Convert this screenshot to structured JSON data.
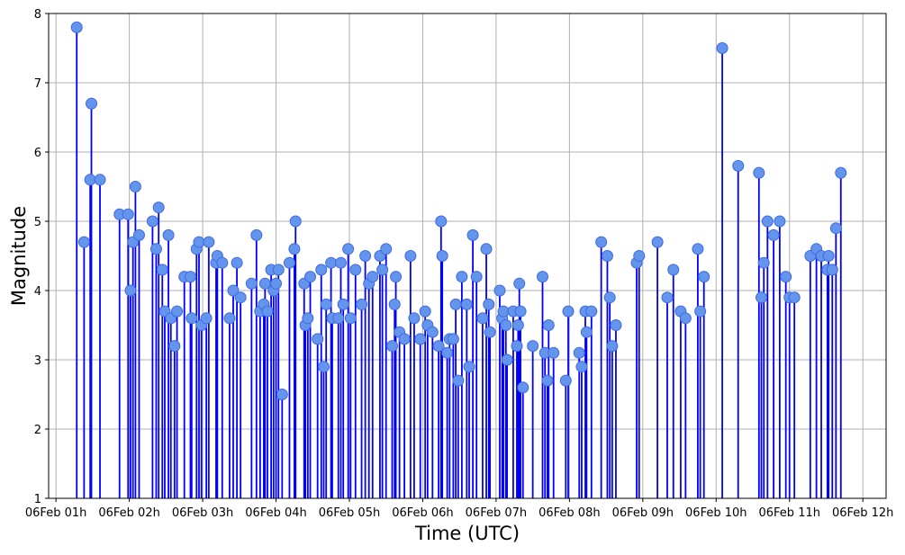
{
  "chart_data": {
    "type": "stem",
    "title": "",
    "xlabel": "Time (UTC)",
    "ylabel": "Magnitude",
    "ylim": [
      1,
      8
    ],
    "y_ticks": [
      1,
      2,
      3,
      4,
      5,
      6,
      7,
      8
    ],
    "xlim": [
      "06Feb 00:54",
      "06Feb 12:19"
    ],
    "x_ticks": [
      {
        "t": "06Feb 01:00",
        "label": "06Feb 01h"
      },
      {
        "t": "06Feb 02:00",
        "label": "06Feb 02h"
      },
      {
        "t": "06Feb 03:00",
        "label": "06Feb 03h"
      },
      {
        "t": "06Feb 04:00",
        "label": "06Feb 04h"
      },
      {
        "t": "06Feb 05:00",
        "label": "06Feb 05h"
      },
      {
        "t": "06Feb 06:00",
        "label": "06Feb 06h"
      },
      {
        "t": "06Feb 07:00",
        "label": "06Feb 07h"
      },
      {
        "t": "06Feb 08:00",
        "label": "06Feb 08h"
      },
      {
        "t": "06Feb 09:00",
        "label": "06Feb 09h"
      },
      {
        "t": "06Feb 10:00",
        "label": "06Feb 10h"
      },
      {
        "t": "06Feb 11:00",
        "label": "06Feb 11h"
      },
      {
        "t": "06Feb 12:00",
        "label": "06Feb 12h"
      }
    ],
    "grid": true,
    "colors": {
      "stem": "#0000ff",
      "marker_fill": "#6495ed",
      "marker_edge": "#4169e1",
      "grid": "#b0b0b0"
    },
    "points": [
      {
        "t": "06Feb 01:17",
        "m": 7.8
      },
      {
        "t": "06Feb 01:23",
        "m": 4.7
      },
      {
        "t": "06Feb 01:28",
        "m": 5.6
      },
      {
        "t": "06Feb 01:29",
        "m": 6.7
      },
      {
        "t": "06Feb 01:36",
        "m": 5.6
      },
      {
        "t": "06Feb 01:52",
        "m": 5.1
      },
      {
        "t": "06Feb 01:59",
        "m": 5.1
      },
      {
        "t": "06Feb 02:01",
        "m": 4.0
      },
      {
        "t": "06Feb 02:03",
        "m": 4.7
      },
      {
        "t": "06Feb 02:05",
        "m": 5.5
      },
      {
        "t": "06Feb 02:08",
        "m": 4.8
      },
      {
        "t": "06Feb 02:19",
        "m": 5.0
      },
      {
        "t": "06Feb 02:22",
        "m": 4.6
      },
      {
        "t": "06Feb 02:24",
        "m": 5.2
      },
      {
        "t": "06Feb 02:27",
        "m": 4.3
      },
      {
        "t": "06Feb 02:29",
        "m": 3.7
      },
      {
        "t": "06Feb 02:32",
        "m": 4.8
      },
      {
        "t": "06Feb 02:34",
        "m": 3.6
      },
      {
        "t": "06Feb 02:37",
        "m": 3.2
      },
      {
        "t": "06Feb 02:39",
        "m": 3.7
      },
      {
        "t": "06Feb 02:45",
        "m": 4.2
      },
      {
        "t": "06Feb 02:50",
        "m": 4.2
      },
      {
        "t": "06Feb 02:51",
        "m": 3.6
      },
      {
        "t": "06Feb 02:55",
        "m": 4.6
      },
      {
        "t": "06Feb 02:57",
        "m": 4.7
      },
      {
        "t": "06Feb 02:59",
        "m": 3.5
      },
      {
        "t": "06Feb 03:03",
        "m": 3.6
      },
      {
        "t": "06Feb 03:05",
        "m": 4.7
      },
      {
        "t": "06Feb 03:11",
        "m": 4.4
      },
      {
        "t": "06Feb 03:12",
        "m": 4.5
      },
      {
        "t": "06Feb 03:16",
        "m": 4.4
      },
      {
        "t": "06Feb 03:22",
        "m": 3.6
      },
      {
        "t": "06Feb 03:25",
        "m": 4.0
      },
      {
        "t": "06Feb 03:28",
        "m": 4.4
      },
      {
        "t": "06Feb 03:31",
        "m": 3.9
      },
      {
        "t": "06Feb 03:40",
        "m": 4.1
      },
      {
        "t": "06Feb 03:44",
        "m": 4.8
      },
      {
        "t": "06Feb 03:47",
        "m": 3.7
      },
      {
        "t": "06Feb 03:50",
        "m": 3.8
      },
      {
        "t": "06Feb 03:51",
        "m": 4.1
      },
      {
        "t": "06Feb 03:53",
        "m": 3.7
      },
      {
        "t": "06Feb 03:56",
        "m": 4.3
      },
      {
        "t": "06Feb 03:58",
        "m": 4.0
      },
      {
        "t": "06Feb 04:00",
        "m": 4.1
      },
      {
        "t": "06Feb 04:02",
        "m": 4.3
      },
      {
        "t": "06Feb 04:05",
        "m": 2.5
      },
      {
        "t": "06Feb 04:11",
        "m": 4.4
      },
      {
        "t": "06Feb 04:15",
        "m": 4.6
      },
      {
        "t": "06Feb 04:16",
        "m": 5.0
      },
      {
        "t": "06Feb 04:23",
        "m": 4.1
      },
      {
        "t": "06Feb 04:24",
        "m": 3.5
      },
      {
        "t": "06Feb 04:26",
        "m": 3.6
      },
      {
        "t": "06Feb 04:28",
        "m": 4.2
      },
      {
        "t": "06Feb 04:34",
        "m": 3.3
      },
      {
        "t": "06Feb 04:37",
        "m": 4.3
      },
      {
        "t": "06Feb 04:39",
        "m": 2.9
      },
      {
        "t": "06Feb 04:41",
        "m": 3.8
      },
      {
        "t": "06Feb 04:45",
        "m": 4.4
      },
      {
        "t": "06Feb 04:46",
        "m": 3.6
      },
      {
        "t": "06Feb 04:51",
        "m": 3.6
      },
      {
        "t": "06Feb 04:53",
        "m": 4.4
      },
      {
        "t": "06Feb 04:55",
        "m": 3.8
      },
      {
        "t": "06Feb 04:59",
        "m": 4.6
      },
      {
        "t": "06Feb 05:01",
        "m": 3.6
      },
      {
        "t": "06Feb 05:05",
        "m": 4.3
      },
      {
        "t": "06Feb 05:10",
        "m": 3.8
      },
      {
        "t": "06Feb 05:13",
        "m": 4.5
      },
      {
        "t": "06Feb 05:16",
        "m": 4.1
      },
      {
        "t": "06Feb 05:19",
        "m": 4.2
      },
      {
        "t": "06Feb 05:25",
        "m": 4.5
      },
      {
        "t": "06Feb 05:27",
        "m": 4.3
      },
      {
        "t": "06Feb 05:30",
        "m": 4.6
      },
      {
        "t": "06Feb 05:35",
        "m": 3.2
      },
      {
        "t": "06Feb 05:37",
        "m": 3.8
      },
      {
        "t": "06Feb 05:38",
        "m": 4.2
      },
      {
        "t": "06Feb 05:41",
        "m": 3.4
      },
      {
        "t": "06Feb 05:45",
        "m": 3.3
      },
      {
        "t": "06Feb 05:50",
        "m": 4.5
      },
      {
        "t": "06Feb 05:53",
        "m": 3.6
      },
      {
        "t": "06Feb 05:58",
        "m": 3.3
      },
      {
        "t": "06Feb 06:02",
        "m": 3.7
      },
      {
        "t": "06Feb 06:04",
        "m": 3.5
      },
      {
        "t": "06Feb 06:08",
        "m": 3.4
      },
      {
        "t": "06Feb 06:13",
        "m": 3.2
      },
      {
        "t": "06Feb 06:15",
        "m": 5.0
      },
      {
        "t": "06Feb 06:16",
        "m": 4.5
      },
      {
        "t": "06Feb 06:20",
        "m": 3.1
      },
      {
        "t": "06Feb 06:22",
        "m": 3.3
      },
      {
        "t": "06Feb 06:25",
        "m": 3.3
      },
      {
        "t": "06Feb 06:27",
        "m": 3.8
      },
      {
        "t": "06Feb 06:29",
        "m": 2.7
      },
      {
        "t": "06Feb 06:32",
        "m": 4.2
      },
      {
        "t": "06Feb 06:36",
        "m": 3.8
      },
      {
        "t": "06Feb 06:38",
        "m": 2.9
      },
      {
        "t": "06Feb 06:41",
        "m": 4.8
      },
      {
        "t": "06Feb 06:44",
        "m": 4.2
      },
      {
        "t": "06Feb 06:49",
        "m": 3.6
      },
      {
        "t": "06Feb 06:52",
        "m": 4.6
      },
      {
        "t": "06Feb 06:54",
        "m": 3.8
      },
      {
        "t": "06Feb 06:55",
        "m": 3.4
      },
      {
        "t": "06Feb 07:03",
        "m": 4.0
      },
      {
        "t": "06Feb 07:05",
        "m": 3.6
      },
      {
        "t": "06Feb 07:06",
        "m": 3.7
      },
      {
        "t": "06Feb 07:08",
        "m": 3.5
      },
      {
        "t": "06Feb 07:09",
        "m": 3.0
      },
      {
        "t": "06Feb 07:14",
        "m": 3.7
      },
      {
        "t": "06Feb 07:17",
        "m": 3.2
      },
      {
        "t": "06Feb 07:18",
        "m": 3.5
      },
      {
        "t": "06Feb 07:19",
        "m": 4.1
      },
      {
        "t": "06Feb 07:20",
        "m": 3.7
      },
      {
        "t": "06Feb 07:22",
        "m": 2.6
      },
      {
        "t": "06Feb 07:30",
        "m": 3.2
      },
      {
        "t": "06Feb 07:38",
        "m": 4.2
      },
      {
        "t": "06Feb 07:40",
        "m": 3.1
      },
      {
        "t": "06Feb 07:42",
        "m": 2.7
      },
      {
        "t": "06Feb 07:43",
        "m": 3.5
      },
      {
        "t": "06Feb 07:47",
        "m": 3.1
      },
      {
        "t": "06Feb 07:57",
        "m": 2.7
      },
      {
        "t": "06Feb 07:59",
        "m": 3.7
      },
      {
        "t": "06Feb 08:08",
        "m": 3.1
      },
      {
        "t": "06Feb 08:10",
        "m": 2.9
      },
      {
        "t": "06Feb 08:13",
        "m": 3.7
      },
      {
        "t": "06Feb 08:14",
        "m": 3.4
      },
      {
        "t": "06Feb 08:18",
        "m": 3.7
      },
      {
        "t": "06Feb 08:26",
        "m": 4.7
      },
      {
        "t": "06Feb 08:31",
        "m": 4.5
      },
      {
        "t": "06Feb 08:33",
        "m": 3.9
      },
      {
        "t": "06Feb 08:35",
        "m": 3.2
      },
      {
        "t": "06Feb 08:38",
        "m": 3.5
      },
      {
        "t": "06Feb 08:55",
        "m": 4.4
      },
      {
        "t": "06Feb 08:57",
        "m": 4.5
      },
      {
        "t": "06Feb 09:12",
        "m": 4.7
      },
      {
        "t": "06Feb 09:20",
        "m": 3.9
      },
      {
        "t": "06Feb 09:25",
        "m": 4.3
      },
      {
        "t": "06Feb 09:31",
        "m": 3.7
      },
      {
        "t": "06Feb 09:35",
        "m": 3.6
      },
      {
        "t": "06Feb 09:45",
        "m": 4.6
      },
      {
        "t": "06Feb 09:47",
        "m": 3.7
      },
      {
        "t": "06Feb 09:50",
        "m": 4.2
      },
      {
        "t": "06Feb 10:05",
        "m": 7.5
      },
      {
        "t": "06Feb 10:18",
        "m": 5.8
      },
      {
        "t": "06Feb 10:35",
        "m": 5.7
      },
      {
        "t": "06Feb 10:37",
        "m": 3.9
      },
      {
        "t": "06Feb 10:39",
        "m": 4.4
      },
      {
        "t": "06Feb 10:42",
        "m": 5.0
      },
      {
        "t": "06Feb 10:47",
        "m": 4.8
      },
      {
        "t": "06Feb 10:52",
        "m": 5.0
      },
      {
        "t": "06Feb 10:57",
        "m": 4.2
      },
      {
        "t": "06Feb 11:00",
        "m": 3.9
      },
      {
        "t": "06Feb 11:04",
        "m": 3.9
      },
      {
        "t": "06Feb 11:17",
        "m": 4.5
      },
      {
        "t": "06Feb 11:22",
        "m": 4.6
      },
      {
        "t": "06Feb 11:26",
        "m": 4.5
      },
      {
        "t": "06Feb 11:31",
        "m": 4.3
      },
      {
        "t": "06Feb 11:32",
        "m": 4.5
      },
      {
        "t": "06Feb 11:35",
        "m": 4.3
      },
      {
        "t": "06Feb 11:38",
        "m": 4.9
      },
      {
        "t": "06Feb 11:42",
        "m": 5.7
      }
    ]
  }
}
